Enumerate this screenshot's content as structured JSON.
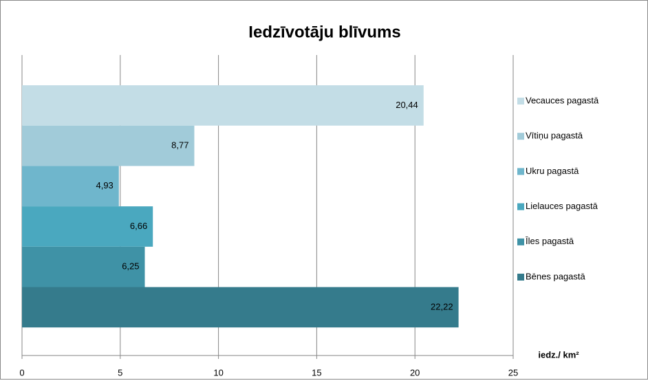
{
  "chart_data": {
    "type": "bar",
    "orientation": "horizontal",
    "title": "Iedzīvotāju blīvums",
    "x_label": "iedz./ km²",
    "series": [
      {
        "name": "Vecauces pagastā",
        "color": "#c3dde6",
        "values": [
          20.44
        ],
        "value_labels": [
          "20,44"
        ]
      },
      {
        "name": "Vītiņu pagastā",
        "color": "#a1cbd9",
        "values": [
          8.77
        ],
        "value_labels": [
          "8,77"
        ]
      },
      {
        "name": "Ukru pagastā",
        "color": "#6fb6cc",
        "values": [
          4.93
        ],
        "value_labels": [
          "4,93"
        ]
      },
      {
        "name": "Lielauces pagastā",
        "color": "#4aa8bf",
        "values": [
          6.66
        ],
        "value_labels": [
          "6,66"
        ]
      },
      {
        "name": "Īles pagastā",
        "color": "#3f92a6",
        "values": [
          6.25
        ],
        "value_labels": [
          "6,25"
        ]
      },
      {
        "name": "Bēnes pagastā",
        "color": "#357b8c",
        "values": [
          22.22
        ],
        "value_labels": [
          "22,22"
        ]
      }
    ],
    "xlim": [
      0,
      25
    ],
    "xticks": [
      0,
      5,
      10,
      15,
      20,
      25
    ],
    "grid": true,
    "legend": "right"
  }
}
